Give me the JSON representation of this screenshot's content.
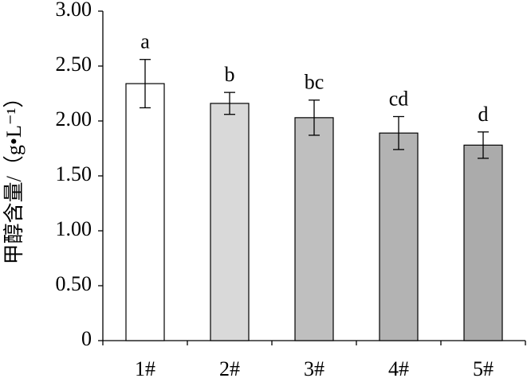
{
  "chart_data": {
    "type": "bar",
    "y_label": "甲醇含量/（g•L⁻¹）",
    "categories": [
      "1#",
      "2#",
      "3#",
      "4#",
      "5#"
    ],
    "values": [
      2.34,
      2.16,
      2.03,
      1.89,
      1.78
    ],
    "errors": [
      0.22,
      0.1,
      0.16,
      0.15,
      0.12
    ],
    "value_labels": [
      "a",
      "b",
      "bc",
      "cd",
      "d"
    ],
    "colors": [
      "#ffffff",
      "#d9d9d9",
      "#bfbfbf",
      "#b3b3b3",
      "#ababab"
    ],
    "ylim": [
      0,
      3
    ],
    "yticks": [
      0,
      {
        "value": 0.5,
        "label": "0.50"
      },
      {
        "value": 1,
        "label": "1.00"
      },
      {
        "value": 1.5,
        "label": "1.50"
      },
      {
        "value": 2,
        "label": "2.00"
      },
      {
        "value": 2.5,
        "label": "2.50"
      },
      {
        "value": 3,
        "label": "3.00"
      }
    ],
    "grid": false
  }
}
